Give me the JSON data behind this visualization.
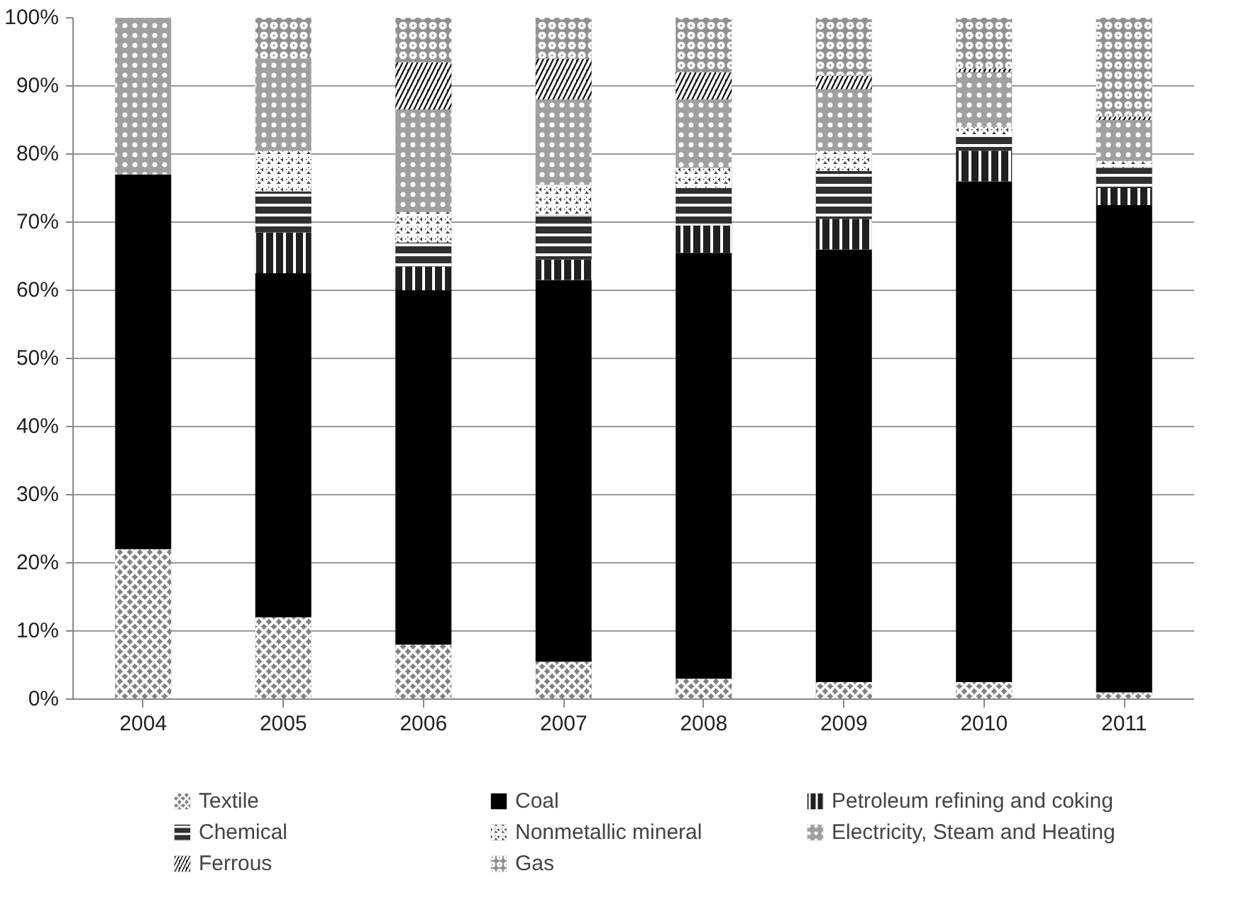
{
  "chart_data": {
    "type": "bar",
    "stacked": true,
    "categories": [
      "2004",
      "2005",
      "2006",
      "2007",
      "2008",
      "2009",
      "2010",
      "2011"
    ],
    "series": [
      {
        "name": "Textile",
        "color": "#808080",
        "values": [
          22,
          12,
          8,
          5.5,
          3,
          2.5,
          2.5,
          1
        ]
      },
      {
        "name": "Coal",
        "color": "#000000",
        "values": [
          55,
          50.5,
          52,
          56,
          62.5,
          63.5,
          73.5,
          71.5
        ]
      },
      {
        "name": "Petroleum refining and coking",
        "color": "#202020",
        "values": [
          0,
          6,
          3.5,
          3,
          4,
          4.5,
          4.5,
          2.5
        ]
      },
      {
        "name": "Chemical",
        "color": "#303030",
        "values": [
          0,
          6,
          3.5,
          6.5,
          5.5,
          7,
          2,
          3
        ]
      },
      {
        "name": "Nonmetallic mineral",
        "color": "#404040",
        "values": [
          0,
          6,
          4.5,
          4.5,
          3,
          3,
          1.5,
          1
        ]
      },
      {
        "name": "Electricity, Steam and Heating",
        "color": "#a0a0a0",
        "values": [
          23,
          13.5,
          15,
          12.5,
          10,
          9,
          8,
          6
        ]
      },
      {
        "name": "Ferrous",
        "color": "#101010",
        "values": [
          0,
          0,
          7,
          6,
          4,
          2,
          0.5,
          0.5
        ]
      },
      {
        "name": "Gas",
        "color": "#909090",
        "values": [
          0,
          6,
          6.5,
          6,
          8,
          8.5,
          7.5,
          14.5
        ]
      }
    ],
    "ylim": [
      0,
      100
    ],
    "yticks": [
      {
        "value": 0,
        "label": "0%"
      },
      {
        "value": 10,
        "label": "10%"
      },
      {
        "value": 20,
        "label": "20%"
      },
      {
        "value": 30,
        "label": "30%"
      },
      {
        "value": 40,
        "label": "40%"
      },
      {
        "value": 50,
        "label": "50%"
      },
      {
        "value": 60,
        "label": "60%"
      },
      {
        "value": 70,
        "label": "70%"
      },
      {
        "value": 80,
        "label": "80%"
      },
      {
        "value": 90,
        "label": "90%"
      },
      {
        "value": 100,
        "label": "100%"
      }
    ],
    "grid": "y",
    "legend": "bottom"
  }
}
